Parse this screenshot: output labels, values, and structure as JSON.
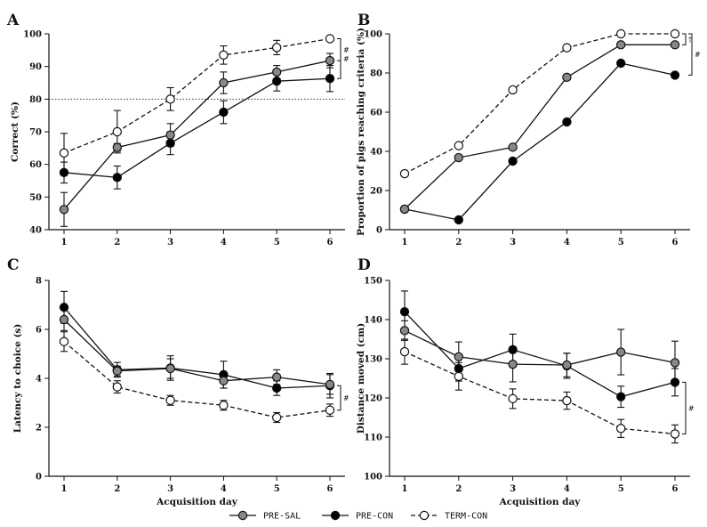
{
  "series_styles": [
    {
      "name": "PRE-SAL",
      "fill": "#888888",
      "dash": false
    },
    {
      "name": "PRE-CON",
      "fill": "#000000",
      "dash": false
    },
    {
      "name": "TERM-CON",
      "fill": "#ffffff",
      "dash": true
    }
  ],
  "legend": [
    "PRE-SAL",
    "PRE-CON",
    "TERM-CON"
  ],
  "chart_data": [
    {
      "letter": "A",
      "type": "line",
      "xlabel": "",
      "ylabel": "Correct (%)",
      "categories": [
        1,
        2,
        3,
        4,
        5,
        6
      ],
      "ylim": [
        40,
        100
      ],
      "yticks": [
        40,
        50,
        60,
        70,
        80,
        90,
        100
      ],
      "reference_line": 80,
      "series": [
        {
          "name": "PRE-SAL",
          "values": [
            46.2,
            65.2,
            69.0,
            85.0,
            88.3,
            91.8
          ],
          "errors": [
            5.2,
            1.2,
            3.5,
            3.3,
            2.0,
            2.2
          ]
        },
        {
          "name": "PRE-CON",
          "values": [
            57.5,
            56.0,
            66.5,
            76.0,
            85.5,
            86.3
          ],
          "errors": [
            3.2,
            3.5,
            3.5,
            3.5,
            3.0,
            4.0
          ]
        },
        {
          "name": "TERM-CON",
          "values": [
            63.5,
            70.0,
            80.0,
            93.5,
            95.8,
            98.5
          ],
          "errors": [
            6.0,
            6.5,
            3.5,
            2.8,
            2.2,
            0.0
          ]
        }
      ],
      "significance": [
        {
          "label": "#",
          "from": 91.8,
          "to": 98.5,
          "x_extra": 0
        },
        {
          "label": "#",
          "from": 86.3,
          "to": 98.5,
          "x_extra": 0
        }
      ]
    },
    {
      "letter": "B",
      "type": "line",
      "xlabel": "",
      "ylabel": "Proportion of pigs reaching criteria (%)",
      "categories": [
        1,
        2,
        3,
        4,
        5,
        6
      ],
      "ylim": [
        0,
        100
      ],
      "yticks": [
        0,
        20,
        40,
        60,
        80,
        100
      ],
      "series": [
        {
          "name": "PRE-SAL",
          "values": [
            10.5,
            36.8,
            42.1,
            77.8,
            94.4,
            94.4
          ]
        },
        {
          "name": "PRE-CON",
          "values": [
            10.5,
            5.0,
            35.0,
            55.0,
            85.0,
            78.9
          ]
        },
        {
          "name": "TERM-CON",
          "values": [
            28.6,
            42.9,
            71.4,
            92.9,
            100.0,
            100.0
          ]
        }
      ],
      "significance": [
        {
          "label": "†",
          "from": 94.4,
          "to": 100.0,
          "x_extra": 0
        },
        {
          "label": "#",
          "from": 78.9,
          "to": 100.0,
          "x_extra": 7
        }
      ]
    },
    {
      "letter": "C",
      "type": "line",
      "xlabel": "Acquisition day",
      "ylabel": "Latency to choice (s)",
      "categories": [
        1,
        2,
        3,
        4,
        5,
        6
      ],
      "ylim": [
        0,
        8
      ],
      "yticks": [
        0,
        2,
        4,
        6,
        8
      ],
      "series": [
        {
          "name": "PRE-SAL",
          "values": [
            6.4,
            4.3,
            4.4,
            3.9,
            4.05,
            3.75
          ],
          "errors": [
            0.45,
            0.2,
            0.4,
            0.3,
            0.3,
            0.4
          ]
        },
        {
          "name": "PRE-CON",
          "values": [
            6.9,
            4.35,
            4.42,
            4.15,
            3.6,
            3.7
          ],
          "errors": [
            0.65,
            0.3,
            0.5,
            0.55,
            0.3,
            0.5
          ]
        },
        {
          "name": "TERM-CON",
          "values": [
            5.5,
            3.65,
            3.1,
            2.9,
            2.4,
            2.7
          ],
          "errors": [
            0.4,
            0.25,
            0.2,
            0.2,
            0.2,
            0.25
          ]
        }
      ],
      "significance": [
        {
          "label": "#",
          "from": 3.7,
          "to": 2.7,
          "x_extra": 0
        }
      ]
    },
    {
      "letter": "D",
      "type": "line",
      "xlabel": "Acquisition day",
      "ylabel": "Distance moved (cm)",
      "categories": [
        1,
        2,
        3,
        4,
        5,
        6
      ],
      "ylim": [
        100,
        150
      ],
      "yticks": [
        100,
        110,
        120,
        130,
        140,
        150
      ],
      "series": [
        {
          "name": "PRE-SAL",
          "values": [
            137.2,
            130.5,
            128.6,
            128.4,
            131.7,
            129.0
          ],
          "errors": [
            2.5,
            3.8,
            4.5,
            3.0,
            5.8,
            5.5
          ]
        },
        {
          "name": "PRE-CON",
          "values": [
            142.0,
            127.5,
            132.3,
            128.2,
            120.3,
            124.0
          ],
          "errors": [
            5.3,
            3.2,
            4.0,
            3.2,
            2.7,
            3.5
          ]
        },
        {
          "name": "TERM-CON",
          "values": [
            131.8,
            125.5,
            119.8,
            119.3,
            112.2,
            110.8
          ],
          "errors": [
            3.2,
            3.5,
            2.5,
            2.2,
            2.3,
            2.3
          ]
        }
      ],
      "significance": [
        {
          "label": "#",
          "from": 124.0,
          "to": 110.8,
          "x_extra": 0
        }
      ]
    }
  ]
}
